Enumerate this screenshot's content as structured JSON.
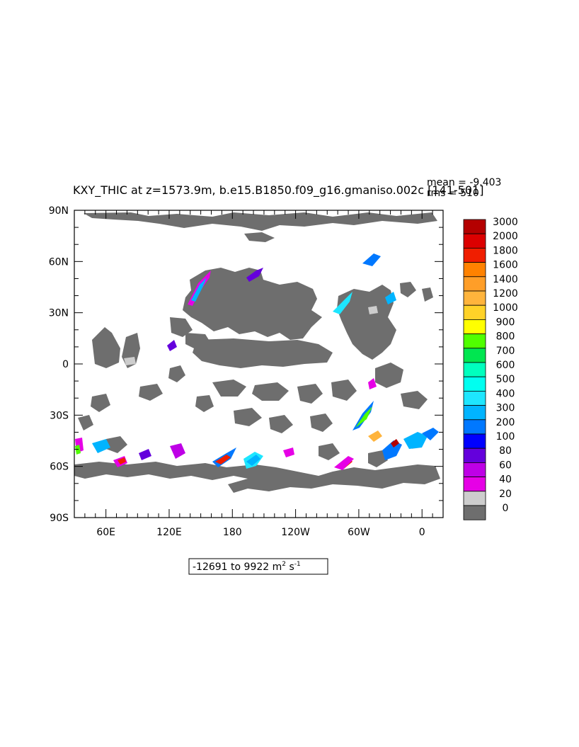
{
  "title": "KXY_THIC at z=1573.9m, b.e15.B1850.f09_g16.gmaniso.002c [141-501]",
  "stats": {
    "mean": "mean = -9.403",
    "rms": "rms = 510"
  },
  "range_label": {
    "prefix": "-12691 to 9922 m",
    "exp": "2",
    "mid": " s",
    "exp2": "-1"
  },
  "y_ticks": [
    "90N",
    "60N",
    "30N",
    "0",
    "30S",
    "60S",
    "90S"
  ],
  "x_ticks": [
    "60E",
    "120E",
    "180",
    "120W",
    "60W",
    "0"
  ],
  "colorbar": {
    "labels": [
      "3000",
      "2000",
      "1800",
      "1600",
      "1400",
      "1200",
      "1000",
      "900",
      "800",
      "700",
      "600",
      "500",
      "400",
      "300",
      "200",
      "100",
      "80",
      "60",
      "40",
      "20",
      "0"
    ],
    "colors": [
      "#b40000",
      "#dc0000",
      "#f01e00",
      "#ff8200",
      "#ff9e28",
      "#ffb43c",
      "#ffd228",
      "#ffff00",
      "#50ff00",
      "#00e650",
      "#00ffbe",
      "#00fff0",
      "#1ee6ff",
      "#00b4ff",
      "#0078ff",
      "#0000ff",
      "#6400dc",
      "#be00e6",
      "#e600e6",
      "#cdcdcd",
      "#6e6e6e"
    ]
  },
  "chart_data": {
    "type": "heatmap",
    "variable": "KXY_THIC",
    "xlim": [
      "30E",
      "20E"
    ],
    "ylim": [
      "90S",
      "90N"
    ],
    "units": "m2 s-1",
    "range": [
      -12691,
      9922
    ],
    "mean": -9.403,
    "rms": 510
  }
}
